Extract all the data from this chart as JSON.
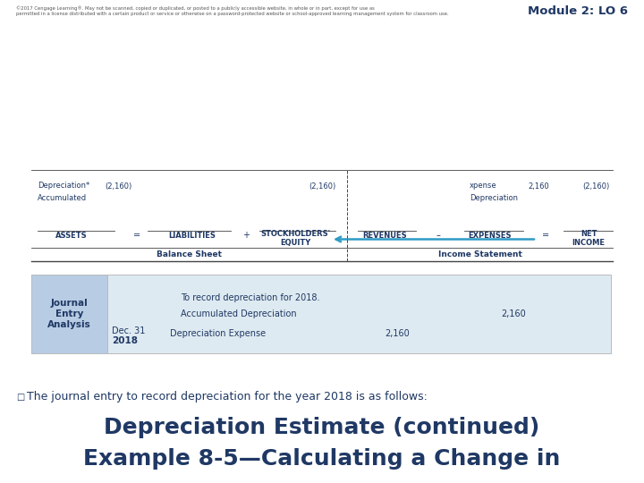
{
  "title_line1": "Example 8-5—Calculating a Change in",
  "title_line2": "Depreciation Estimate (continued)",
  "title_color": "#1F3864",
  "bullet_text": "The journal entry to record depreciation for the year 2018 is as follows:",
  "bullet_color": "#1F3864",
  "bg_color": "#FFFFFF",
  "journal_header_bg": "#B8CCE4",
  "journal_body_bg": "#DEEAF1",
  "journal_label": "Journal\nEntry\nAnalysis",
  "journal_year": "2018",
  "journal_date": "Dec. 31",
  "journal_line1": "Depreciation Expense",
  "journal_line1_dr": "2,160",
  "journal_line2": "Accumulated Depreciation",
  "journal_line2_cr": "2,160",
  "journal_line3": "To record depreciation for 2018.",
  "bs_header": "Balance Sheet",
  "is_header": "Income Statement",
  "col_assets": "ASSETS",
  "col_liabilities": "LIABILITIES",
  "col_equity": "STOCKHOLDERS'\nEQUITY",
  "col_revenues": "REVENUES",
  "col_expenses": "EXPENSES",
  "col_net_income": "NET\nINCOME",
  "eq_sign1": "=",
  "plus_sign": "+",
  "minus_sign1": "–",
  "eq_sign2": "=",
  "row_assets_label1": "Accumulated",
  "row_assets_label2": "Depreciation*",
  "row_assets_val": "(2,160)",
  "row_equity_val": "(2,160)",
  "row_exp_label": "Depreciation",
  "row_exp_sublabel": "xpense",
  "row_exp_val": "2,160",
  "row_net_val": "(2,160)",
  "arrow_color": "#2E9AC4",
  "footer_text": "©2017 Cengage Learning®. May not be scanned, copied or duplicated, or posted to a publicly accessible website, in whole or in part, except for use as\npermitted in a license distributed with a certain product or service or otherwise on a password-protected website or school-approved learning management system for classroom use.",
  "module_text": "Module 2: LO 6",
  "module_color": "#1F3864"
}
